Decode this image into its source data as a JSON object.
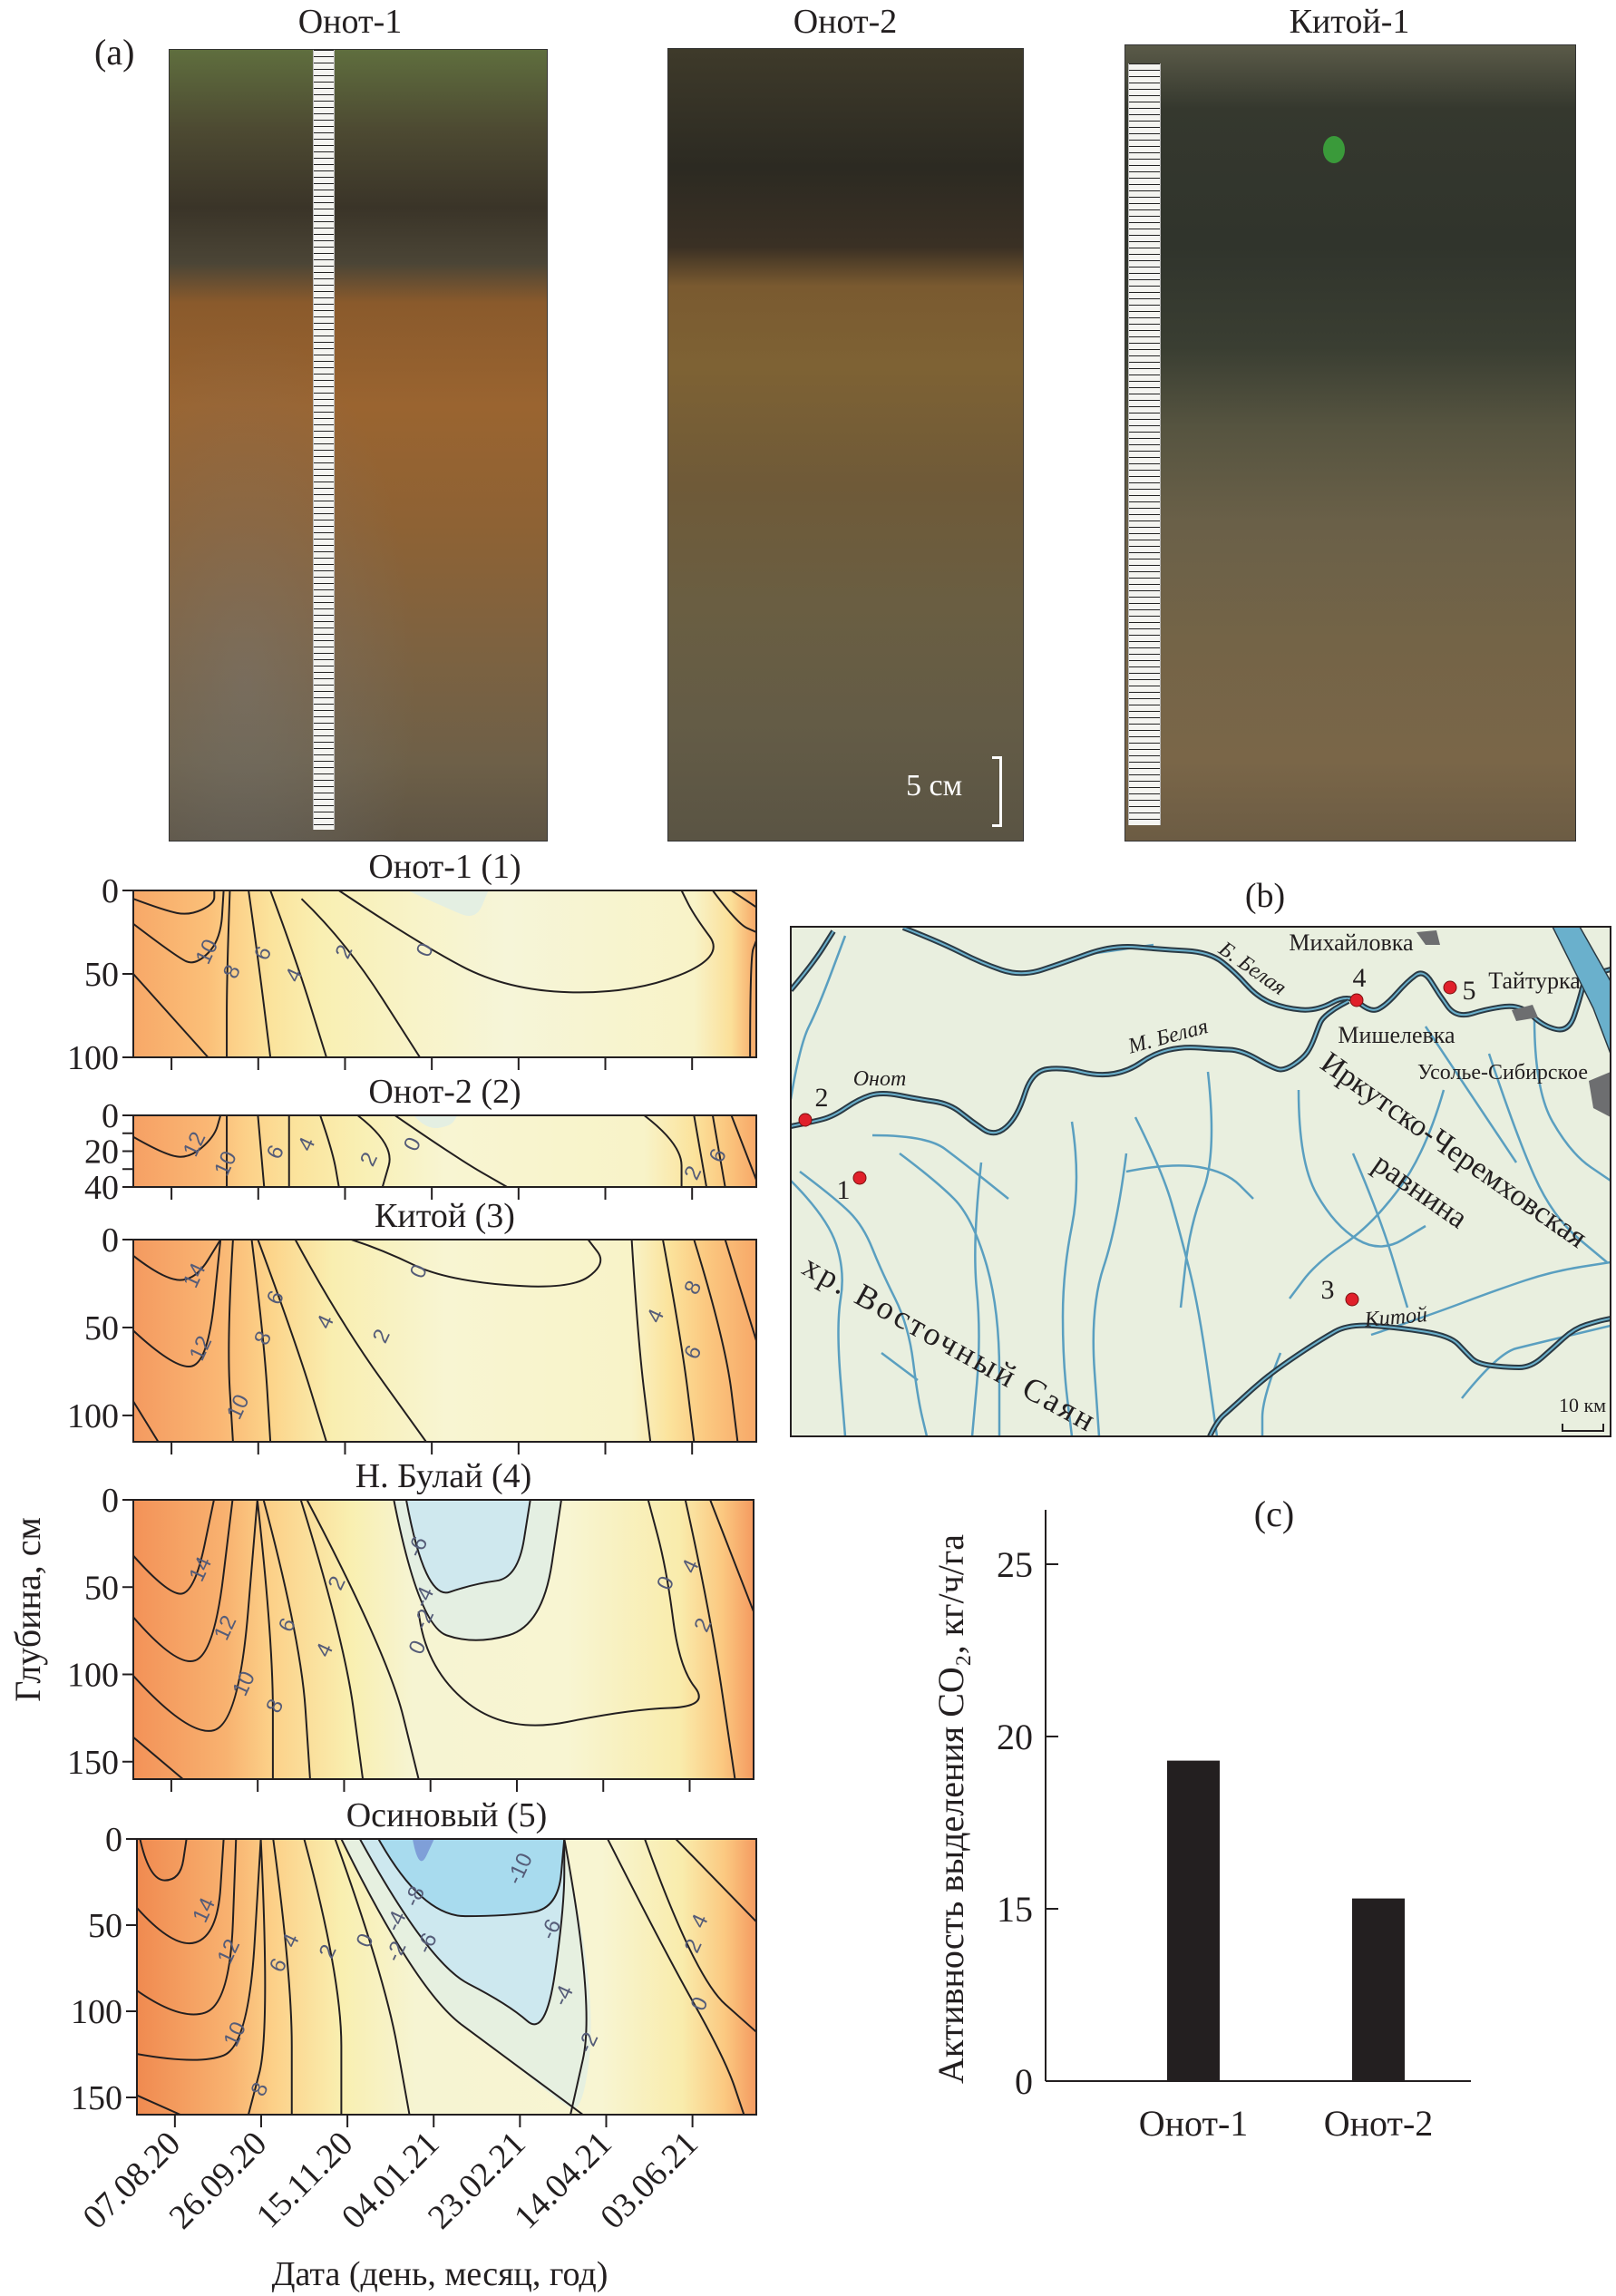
{
  "figure": {
    "panel_a_label": "(a)",
    "panel_b_label": "(b)",
    "panel_c_label": "(c)"
  },
  "photos": [
    {
      "title": "Онот-1"
    },
    {
      "title": "Онот-2",
      "scale_label": "5 см"
    },
    {
      "title": "Китой-1"
    }
  ],
  "contour_common": {
    "ylabel": "Глубина, см",
    "xlabel": "Дата (день, месяц, год)",
    "xlim": [
      "2020-07-16",
      "2021-07-10"
    ],
    "x_ticks": [
      "07.08.20",
      "26.09.20",
      "15.11.20",
      "04.01.21",
      "23.02.21",
      "14.04.21",
      "03.06.21"
    ]
  },
  "chart_data": [
    {
      "type": "heatmap",
      "title": "Онот-1 (1)",
      "ylim": [
        0,
        100
      ],
      "y_ticks": [
        "0",
        "50",
        "100"
      ],
      "y_tick_values": [
        0,
        50,
        100
      ],
      "y_minor_ticks": [],
      "contour_labels": [
        "10",
        "8",
        "6",
        "4",
        "2",
        "0"
      ]
    },
    {
      "type": "heatmap",
      "title": "Онот-2 (2)",
      "ylim": [
        0,
        40
      ],
      "y_ticks": [
        "0",
        "20",
        "40"
      ],
      "y_tick_values": [
        0,
        20,
        40
      ],
      "y_minor_ticks": [
        10,
        30
      ],
      "contour_labels": [
        "12",
        "10",
        "6",
        "4",
        "2",
        "0",
        "2",
        "6"
      ]
    },
    {
      "type": "heatmap",
      "title": "Китой (3)",
      "ylim": [
        0,
        115
      ],
      "y_ticks": [
        "0",
        "50",
        "100"
      ],
      "y_tick_values": [
        0,
        50,
        100
      ],
      "y_minor_ticks": [],
      "contour_labels": [
        "14",
        "12",
        "10",
        "8",
        "6",
        "4",
        "2",
        "0",
        "4",
        "8",
        "6"
      ]
    },
    {
      "type": "heatmap",
      "title": "Н. Булай (4)",
      "ylim": [
        0,
        160
      ],
      "y_ticks": [
        "0",
        "50",
        "100",
        "150"
      ],
      "y_tick_values": [
        0,
        50,
        100,
        150
      ],
      "y_minor_ticks": [],
      "contour_labels": [
        "14",
        "12",
        "10",
        "8",
        "6",
        "4",
        "2",
        "-6",
        "-4",
        "-2",
        "0",
        "0",
        "4",
        "2"
      ]
    },
    {
      "type": "heatmap",
      "title": "Осиновый (5)",
      "ylim": [
        0,
        160
      ],
      "y_ticks": [
        "0",
        "50",
        "100",
        "150"
      ],
      "y_tick_values": [
        0,
        50,
        100,
        150
      ],
      "y_minor_ticks": [],
      "contour_labels": [
        "14",
        "12",
        "10",
        "8",
        "6",
        "4",
        "2",
        "0",
        "-2",
        "-4",
        "-6",
        "-8",
        "-10",
        "-6",
        "-4",
        "-2",
        "4",
        "2",
        "0"
      ]
    },
    {
      "type": "bar",
      "title": "(c)",
      "categories": [
        "Онот-1",
        "Онот-2"
      ],
      "values": [
        19.3,
        15.3
      ],
      "ylabel": "Активность выделения CO₂, кг/ч/га",
      "y_ticks": [
        "0",
        "15",
        "20",
        "25"
      ],
      "y_tick_values": [
        0,
        15,
        20,
        25
      ],
      "axis_break": "between 0 and 15",
      "bar_color": "#231f20"
    }
  ],
  "map": {
    "labels": {
      "mikhaylovka": "Михайловка",
      "b_belaya": "Б. Белая",
      "taiturka": "Тайтурка",
      "mishelevka": "Мишелевка",
      "usolye": "Усолье-Сибирское",
      "m_belaya": "М. Белая",
      "onot": "Онот",
      "plain_1": "Иркутско-Черемховская",
      "plain_2": "равнина",
      "range": "хр. Восточный Саян",
      "kitoy": "Китой",
      "scale": "10 км"
    },
    "sites": [
      "1",
      "2",
      "3",
      "4",
      "5"
    ],
    "colors": {
      "land": "#e9efdf",
      "river": "#5a9fc0",
      "river_outline": "#2b3a44",
      "site": "#e0202a",
      "town": "#6d6e70"
    }
  },
  "palette": {
    "warm_max": "#f08a50",
    "warm": "#fbc47e",
    "neutral": "#f8f5d2",
    "cold": "#c8e6f0",
    "cold_max": "#7f9fd8",
    "contour_label": "#555c78"
  }
}
